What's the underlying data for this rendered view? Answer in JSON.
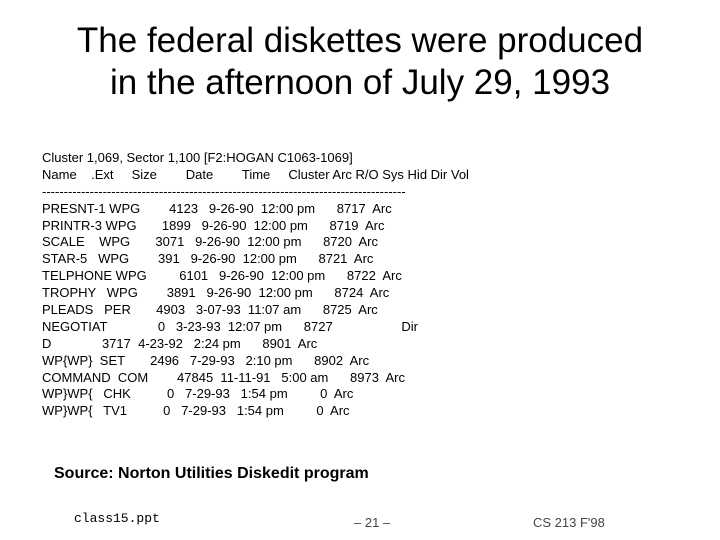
{
  "slide": {
    "title_line1": "The federal diskettes were produced",
    "title_line2": "in the afternoon of July 29, 1993",
    "listing": [
      "Cluster 1,069, Sector 1,100 [F2:HOGAN C1063-1069]",
      "Name    .Ext     Size        Date        Time     Cluster Arc R/O Sys Hid Dir Vol",
      "------------------------------------------------------------------------------------",
      "PRESNT-1 WPG        4123   9-26-90  12:00 pm      8717  Arc",
      "PRINTR-3 WPG       1899   9-26-90  12:00 pm      8719  Arc",
      "SCALE    WPG       3071   9-26-90  12:00 pm      8720  Arc",
      "STAR-5   WPG        391   9-26-90  12:00 pm      8721  Arc",
      "TELPHONE WPG         6101   9-26-90  12:00 pm      8722  Arc",
      "TROPHY   WPG        3891   9-26-90  12:00 pm      8724  Arc",
      "PLEADS   PER       4903   3-07-93  11:07 am      8725  Arc",
      "NEGOTIAT              0   3-23-93  12:07 pm      8727                   Dir",
      "D              3717  4-23-92   2:24 pm      8901  Arc",
      "WP{WP}  SET       2496   7-29-93   2:10 pm      8902  Arc",
      "COMMAND  COM        47845  11-11-91   5:00 am      8973  Arc",
      "WP}WP{   CHK          0   7-29-93   1:54 pm         0  Arc",
      "WP}WP{   TV1          0   7-29-93   1:54 pm         0  Arc"
    ],
    "source": "Source: Norton Utilities Diskedit program",
    "footer_left": "class15.ppt",
    "footer_center": "– 21 –",
    "footer_right": "CS 213 F'98"
  }
}
